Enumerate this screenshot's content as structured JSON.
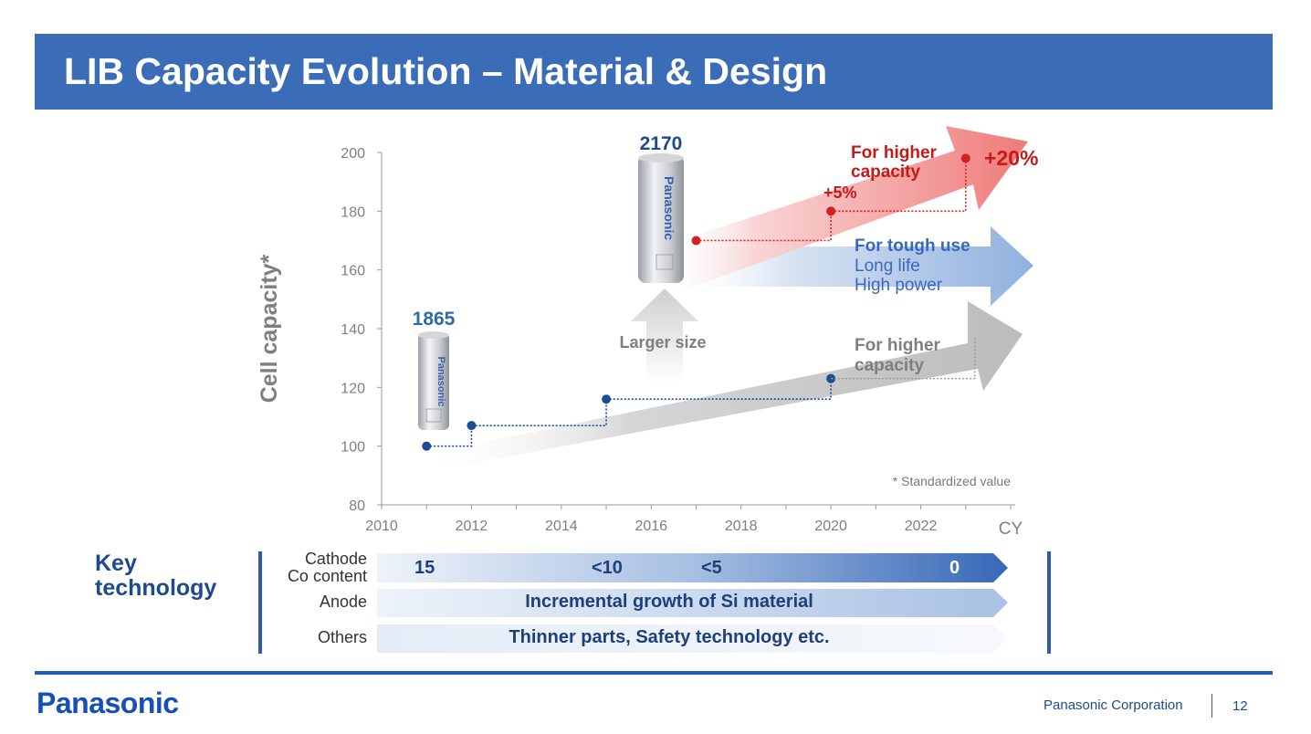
{
  "slide": {
    "title": "LIB Capacity Evolution – Material & Design"
  },
  "chart_data": {
    "type": "line",
    "ylabel": "Cell capacity*",
    "xlabel": "CY",
    "xlim": [
      2010,
      2024
    ],
    "ylim": [
      80,
      200
    ],
    "xticks": [
      2010,
      2012,
      2014,
      2016,
      2018,
      2020,
      2022
    ],
    "yticks": [
      80,
      100,
      120,
      140,
      160,
      180,
      200
    ],
    "grid": false,
    "footnote": "* Standardized value",
    "series": [
      {
        "name": "1865",
        "color": "#1d4e93",
        "x": [
          2011,
          2012,
          2015,
          2020
        ],
        "y": [
          100,
          107,
          116,
          123
        ]
      },
      {
        "name": "2170",
        "color": "#d42020",
        "x": [
          2017,
          2020,
          2023
        ],
        "y": [
          170,
          180,
          198
        ]
      }
    ],
    "cell_labels": {
      "c1865": "1865",
      "c2170": "2170",
      "brand": "Panasonic"
    },
    "annotations": {
      "larger_size": "Larger size",
      "gray_arrow": [
        "For higher",
        "capacity"
      ],
      "blue_arrow": {
        "title": "For tough use",
        "lines": [
          "Long life",
          "High power"
        ]
      },
      "red_arrow": [
        "For higher",
        "capacity"
      ],
      "plus5": "+5%",
      "plus20": "+20%"
    }
  },
  "key_technology": {
    "title": [
      "Key",
      "technology"
    ],
    "rows": [
      {
        "label": [
          "Cathode",
          "Co content"
        ],
        "values": [
          "15",
          "<10",
          "<5",
          "0"
        ]
      },
      {
        "label": [
          "Anode"
        ],
        "text": "Incremental growth of Si material"
      },
      {
        "label": [
          "Others"
        ],
        "text": "Thinner parts, Safety technology etc."
      }
    ]
  },
  "footer": {
    "logo": "Panasonic",
    "company": "Panasonic Corporation",
    "page": "12"
  },
  "colors": {
    "title_bar": "#3b6cb7",
    "navy": "#1e4a8c",
    "red": "#d42020",
    "gray_text": "#7f7f7f"
  }
}
